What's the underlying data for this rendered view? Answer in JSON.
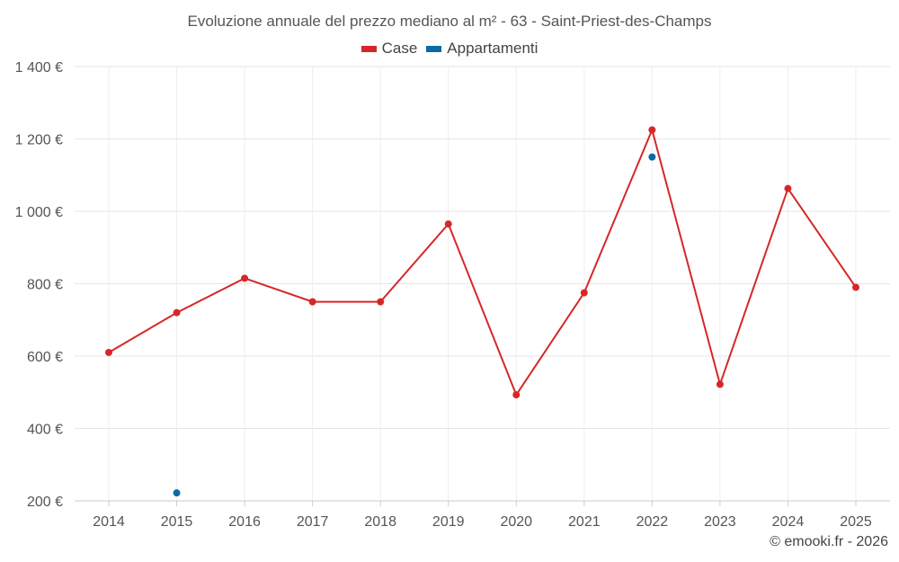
{
  "chart_data": {
    "type": "line",
    "title": "Evoluzione annuale del prezzo mediano al m² - 63 - Saint-Priest-des-Champs",
    "xlabel": "",
    "ylabel": "",
    "categories": [
      "2014",
      "2015",
      "2016",
      "2017",
      "2018",
      "2019",
      "2020",
      "2021",
      "2022",
      "2023",
      "2024",
      "2025"
    ],
    "y_ticks": [
      200,
      400,
      600,
      800,
      1000,
      1200,
      1400
    ],
    "y_tick_labels": [
      "200 €",
      "400 €",
      "600 €",
      "800 €",
      "1 000 €",
      "1 200 €",
      "1 400 €"
    ],
    "ylim": [
      200,
      1400
    ],
    "grid": true,
    "legend_position": "top-center",
    "series": [
      {
        "name": "Case",
        "color": "#d62728",
        "values": [
          610,
          720,
          815,
          750,
          750,
          965,
          493,
          775,
          1225,
          522,
          1063,
          790
        ]
      },
      {
        "name": "Appartamenti",
        "color": "#0b6aa5",
        "values": [
          null,
          222,
          null,
          null,
          null,
          null,
          null,
          null,
          1150,
          null,
          null,
          null
        ]
      }
    ]
  },
  "footer": {
    "copyright": "© emooki.fr - 2026"
  }
}
